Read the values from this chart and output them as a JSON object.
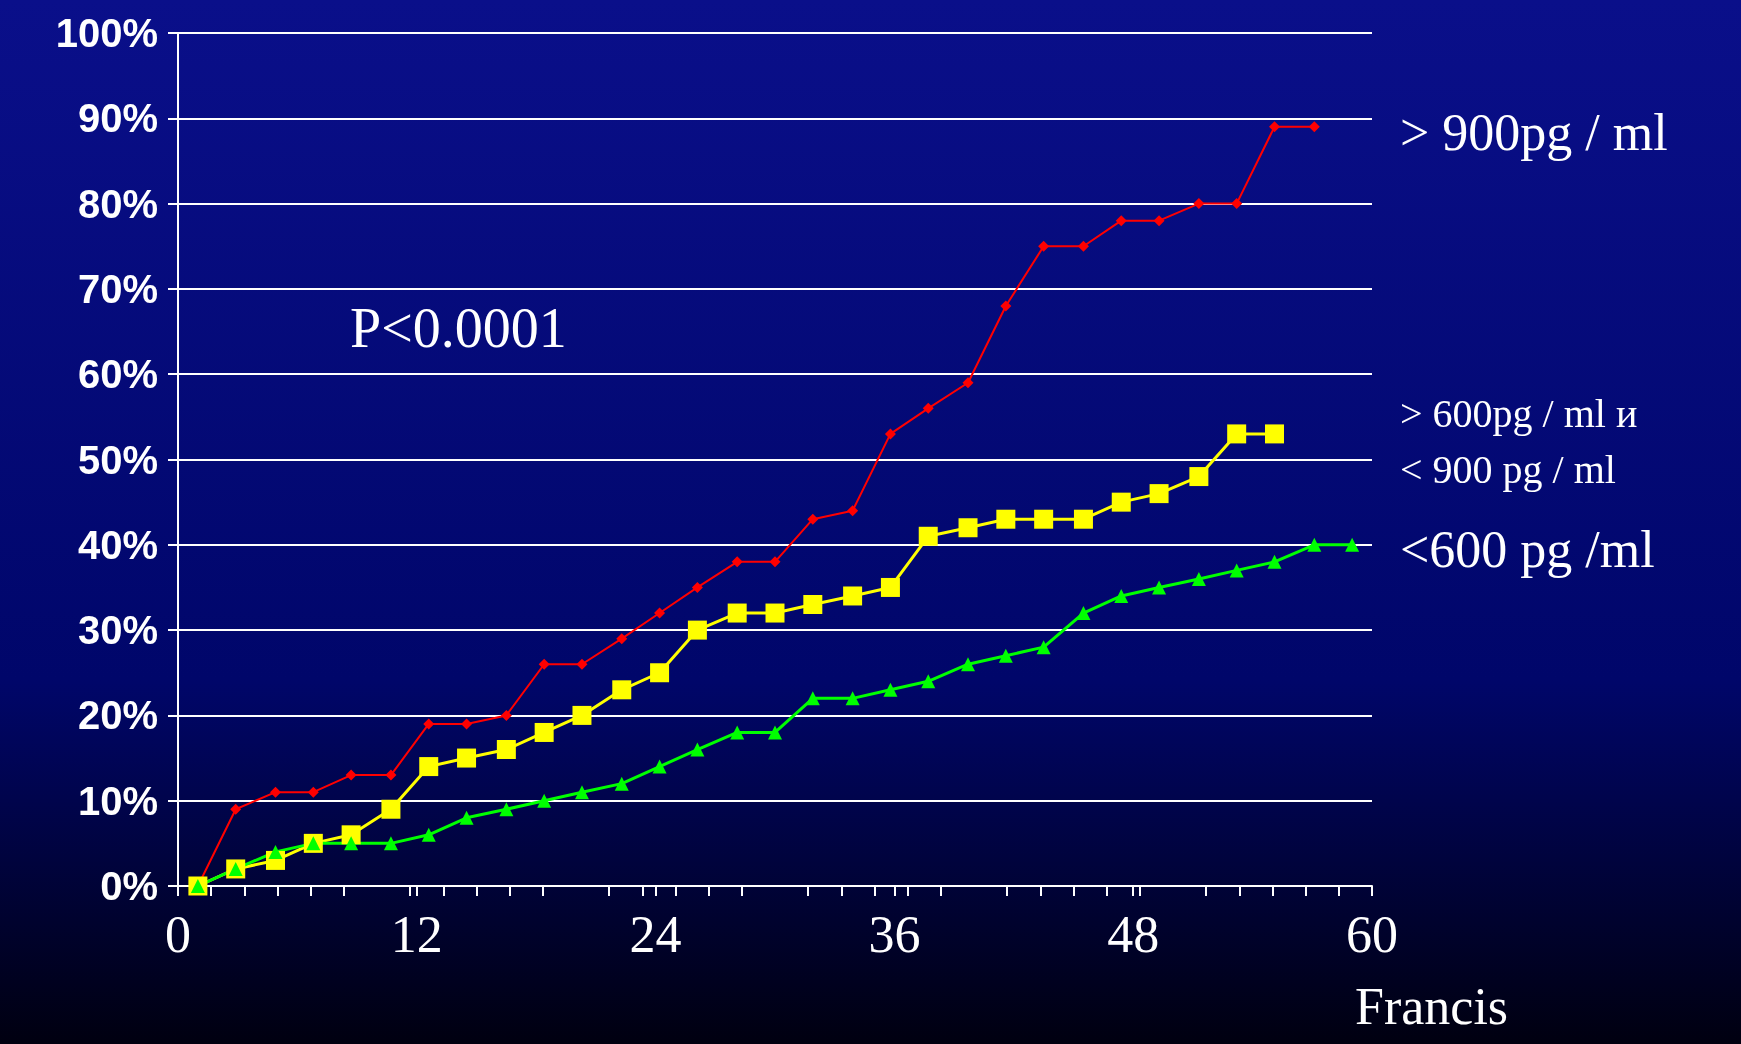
{
  "chart_data": {
    "type": "line",
    "annotations": [
      "P<0.0001",
      "Francis"
    ],
    "xlim": [
      0,
      60
    ],
    "xticks": [
      0,
      12,
      24,
      36,
      48,
      60
    ],
    "ylim": [
      0,
      100
    ],
    "yticks": [
      {
        "value": 0,
        "label": "0%"
      },
      {
        "value": 10,
        "label": "10%"
      },
      {
        "value": 20,
        "label": "20%"
      },
      {
        "value": 30,
        "label": "30%"
      },
      {
        "value": 40,
        "label": "40%"
      },
      {
        "value": 50,
        "label": "50%"
      },
      {
        "value": 60,
        "label": "60%"
      },
      {
        "value": 70,
        "label": "70%"
      },
      {
        "value": 80,
        "label": "80%"
      },
      {
        "value": 90,
        "label": "90%"
      },
      {
        "value": 100,
        "label": "100%"
      }
    ],
    "grid": "y",
    "series": [
      {
        "name": "> 900pg / ml",
        "color": "#ff0000",
        "marker": "diamond",
        "x": [
          1,
          2.9,
          4.9,
          6.8,
          8.7,
          10.7,
          12.6,
          14.5,
          16.5,
          18.4,
          20.3,
          22.3,
          24.2,
          26.1,
          28.1,
          30,
          31.9,
          33.9,
          35.8,
          37.7,
          39.7,
          41.6,
          43.5,
          45.5,
          47.4,
          49.3,
          51.3,
          53.2,
          55.1,
          57.1
        ],
        "values": [
          0,
          9,
          11,
          11,
          13,
          13,
          19,
          19,
          20,
          26,
          26,
          29,
          32,
          35,
          38,
          38,
          43,
          44,
          53,
          56,
          59,
          68,
          75,
          75,
          78,
          78,
          80,
          80,
          89,
          89
        ]
      },
      {
        "name": "> 600pg / ml и\n< 900 pg / ml",
        "color": "#ffff00",
        "marker": "square",
        "x": [
          1,
          2.9,
          4.9,
          6.8,
          8.7,
          10.7,
          12.6,
          14.5,
          16.5,
          18.4,
          20.3,
          22.3,
          24.2,
          26.1,
          28.1,
          30,
          31.9,
          33.9,
          35.8,
          37.7,
          39.7,
          41.6,
          43.5,
          45.5,
          47.4,
          49.3,
          51.3,
          53.2,
          55.1
        ],
        "values": [
          0,
          2,
          3,
          5,
          6,
          9,
          14,
          15,
          16,
          18,
          20,
          23,
          25,
          30,
          32,
          32,
          33,
          34,
          35,
          41,
          42,
          43,
          43,
          43,
          45,
          46,
          48,
          53,
          53
        ]
      },
      {
        "name": "<600 pg /ml",
        "color": "#00ff00",
        "marker": "triangle",
        "x": [
          1,
          2.9,
          4.9,
          6.8,
          8.7,
          10.7,
          12.6,
          14.5,
          16.5,
          18.4,
          20.3,
          22.3,
          24.2,
          26.1,
          28.1,
          30,
          31.9,
          33.9,
          35.8,
          37.7,
          39.7,
          41.6,
          43.5,
          45.5,
          47.4,
          49.3,
          51.3,
          53.2,
          55.1,
          57.1,
          59
        ],
        "values": [
          0,
          2,
          4,
          5,
          5,
          5,
          6,
          8,
          9,
          10,
          11,
          12,
          14,
          16,
          18,
          18,
          22,
          22,
          23,
          24,
          26,
          27,
          28,
          32,
          34,
          35,
          36,
          37,
          38,
          40,
          40
        ]
      }
    ]
  }
}
